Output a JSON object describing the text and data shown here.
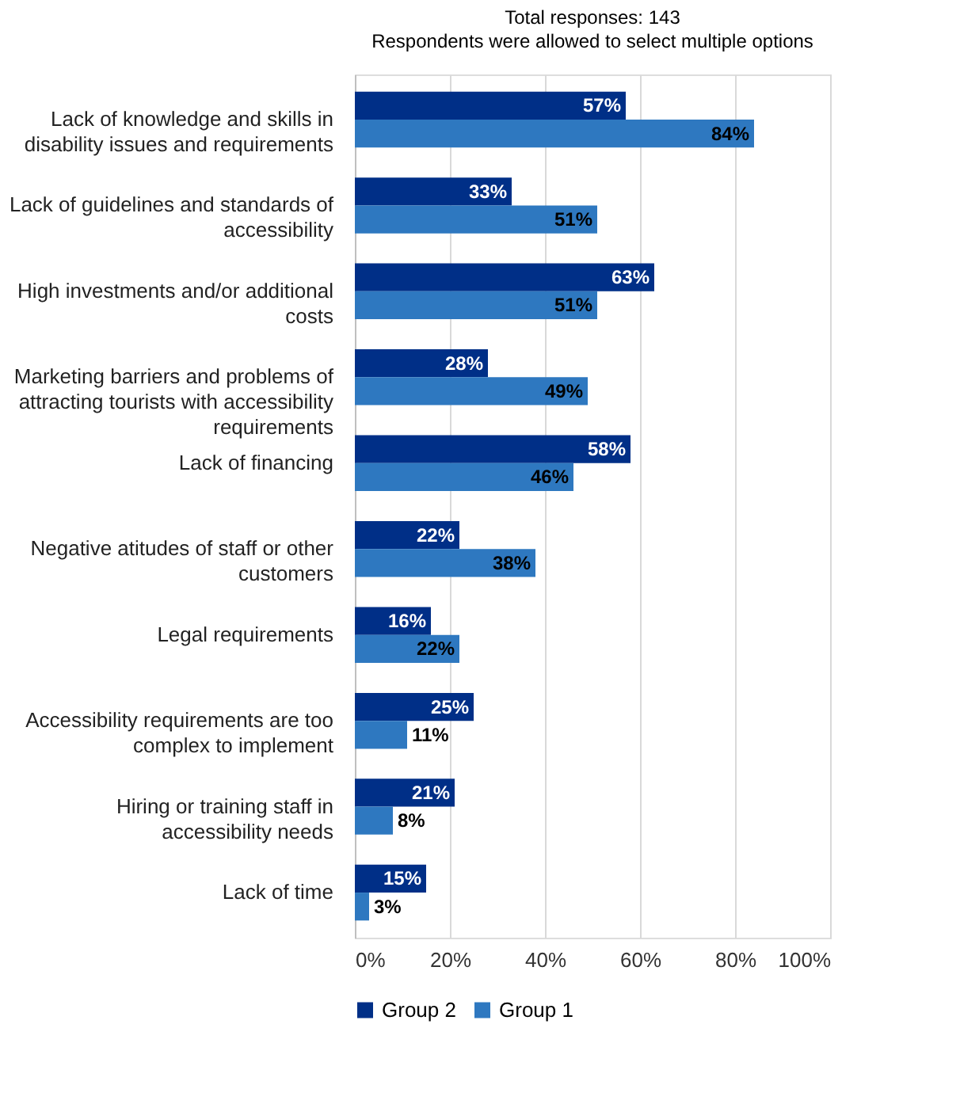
{
  "chart_data": {
    "type": "bar",
    "orientation": "horizontal",
    "title": "Total responses: 143",
    "subtitle": "Respondents were allowed to select multiple options",
    "categories": [
      "Lack of knowledge and skills in disability issues and requirements",
      "Lack of guidelines and standards of accessibility",
      "High investments and/or additional costs",
      "Marketing barriers and problems of attracting tourists with accessibility requirements",
      "Lack of financing",
      "Negative atitudes of staff or other customers",
      "Legal requirements",
      "Accessibility requirements are too complex to implement",
      "Hiring or training staff in accessibility needs",
      "Lack of time"
    ],
    "series": [
      {
        "name": "Group 2",
        "color": "#002f87",
        "values": [
          57,
          33,
          63,
          28,
          58,
          22,
          16,
          25,
          21,
          15
        ],
        "value_labels": [
          "57%",
          "33%",
          "63%",
          "28%",
          "58%",
          "22%",
          "16%",
          "25%",
          "21%",
          "15%"
        ]
      },
      {
        "name": "Group 1",
        "color": "#2e78c0",
        "values": [
          84,
          51,
          51,
          49,
          46,
          38,
          22,
          11,
          8,
          3
        ],
        "value_labels": [
          "84%",
          "51%",
          "51%",
          "49%",
          "46%",
          "38%",
          "22%",
          "11%",
          "8%",
          "3%"
        ]
      }
    ],
    "xlim": [
      0,
      100
    ],
    "xticks": [
      {
        "value": 0,
        "label": "0%"
      },
      {
        "value": 20,
        "label": "20%"
      },
      {
        "value": 40,
        "label": "40%"
      },
      {
        "value": 60,
        "label": "60%"
      },
      {
        "value": 80,
        "label": "80%"
      },
      {
        "value": 100,
        "label": "100%"
      }
    ],
    "grid": "x",
    "legend": "bottom"
  }
}
